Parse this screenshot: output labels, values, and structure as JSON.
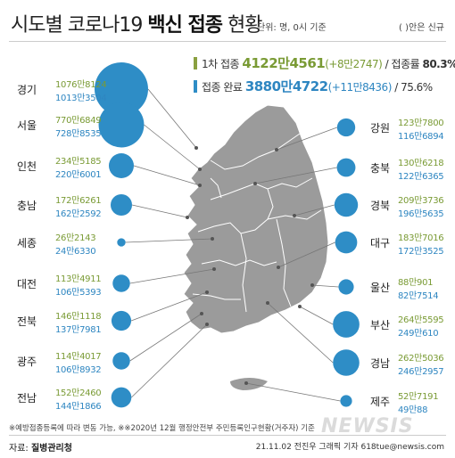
{
  "title_prefix": "시도별 코로나19 ",
  "title_bold": "백신 접종",
  "title_suffix": " 현황",
  "unit": "단위: 명, 0시 기준",
  "unit_note": "( )안은 신규",
  "legend": {
    "first_label": "1차 접종",
    "first_value": "4122만4561",
    "first_new": "(+8만2747)",
    "first_rate_label": "/ 접종률",
    "first_rate": "80.3%",
    "full_label": "접종 완료",
    "full_value": "3880만4722",
    "full_new": "(+11만8436)",
    "full_rate": "/ 75.6%"
  },
  "colors": {
    "first": "#7a9b35",
    "full": "#2e8dc6",
    "map": "#9a9a9a",
    "border": "#ffffff"
  },
  "regions_left": [
    {
      "name": "경기",
      "first": "1076만8124",
      "full": "1013만3504",
      "full_num": 10133504
    },
    {
      "name": "서울",
      "first": "770만6849",
      "full": "728만8535",
      "full_num": 7288535
    },
    {
      "name": "인천",
      "first": "234만5185",
      "full": "220만6001",
      "full_num": 2206001
    },
    {
      "name": "충남",
      "first": "172만6261",
      "full": "162만2592",
      "full_num": 1622592
    },
    {
      "name": "세종",
      "first": "26만2143",
      "full": "24만6330",
      "full_num": 246330
    },
    {
      "name": "대전",
      "first": "113만4911",
      "full": "106만5393",
      "full_num": 1065393
    },
    {
      "name": "전북",
      "first": "146만1118",
      "full": "137만7981",
      "full_num": 1377981
    },
    {
      "name": "광주",
      "first": "114만4017",
      "full": "106만8932",
      "full_num": 1068932
    },
    {
      "name": "전남",
      "first": "152만2460",
      "full": "144만1866",
      "full_num": 1441866
    }
  ],
  "regions_right": [
    {
      "name": "강원",
      "first": "123만7800",
      "full": "116만6894",
      "full_num": 1166894
    },
    {
      "name": "충북",
      "first": "130만6218",
      "full": "122만6365",
      "full_num": 1226365
    },
    {
      "name": "경북",
      "first": "209만3736",
      "full": "196만5635",
      "full_num": 1965635
    },
    {
      "name": "대구",
      "first": "183만7016",
      "full": "172만3525",
      "full_num": 1723525
    },
    {
      "name": "울산",
      "first": "88만901",
      "full": "82만7514",
      "full_num": 827514
    },
    {
      "name": "부산",
      "first": "264만5595",
      "full": "249만610",
      "full_num": 2490610
    },
    {
      "name": "경남",
      "first": "262만5036",
      "full": "246만2957",
      "full_num": 2462957
    },
    {
      "name": "제주",
      "first": "52만7191",
      "full": "49만88",
      "full_num": 490088
    }
  ],
  "footnote": "※예방접종등록에 따라 변동 가능, ※※2020년 12월 행정안전부 주민등록인구현황(거주자) 기준",
  "source_label": "자료: ",
  "source_name": "질병관리청",
  "credit": "21.11.02 전진우 그래픽 기자 618tue@newsis.com",
  "watermark": "NEWSIS"
}
